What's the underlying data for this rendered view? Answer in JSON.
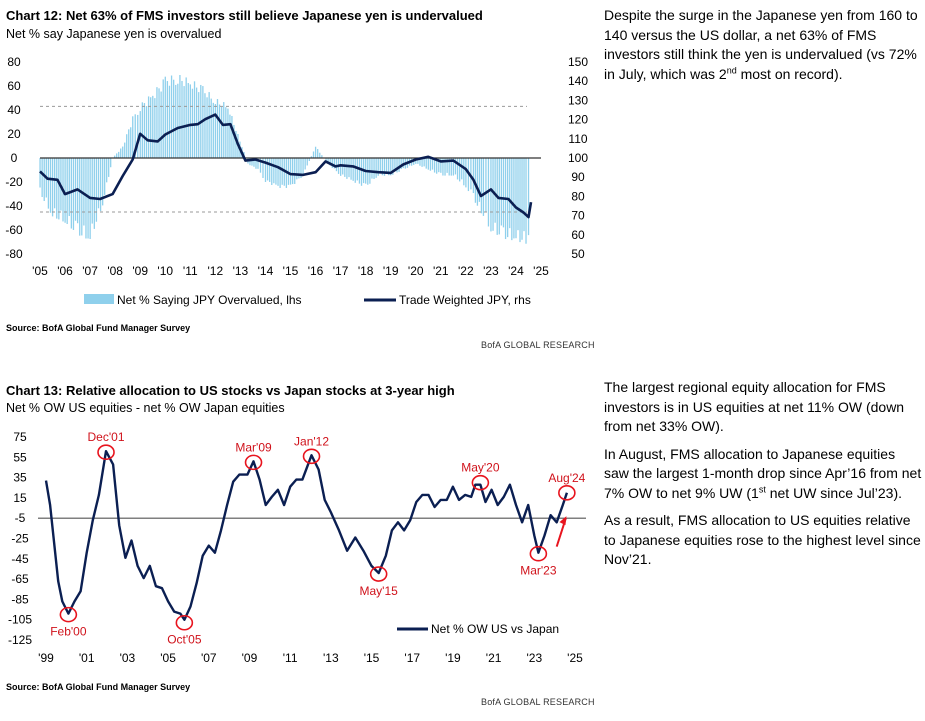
{
  "chart12": {
    "title": "Chart 12: Net 63% of FMS investors still believe Japanese yen is undervalued",
    "subtitle": "Net % say Japanese yen is overvalued",
    "source": "Source: BofA Global Fund Manager Survey",
    "brand": "BofA GLOBAL RESEARCH"
  },
  "chart13": {
    "title": "Chart 13: Relative allocation to US stocks vs Japan stocks at 3-year high",
    "subtitle": "Net % OW US equities - net % OW Japan equities",
    "source": "Source: BofA Global Fund Manager Survey",
    "brand": "BofA GLOBAL RESEARCH"
  },
  "commentary": {
    "p1": {
      "a": "Despite the surge in the Japanese yen from 160 to 140 versus the US dollar, a net 63% of FMS investors still think the yen is undervalued (vs 72% in July, which was 2",
      "sup": "nd",
      "b": " most on record)."
    },
    "p2": "The largest regional equity allocation for FMS investors is in US equities at net 11% OW (down from net 33% OW).",
    "p3": {
      "a": "In August, FMS allocation to Japanese equities saw the largest 1-month drop since Apr’16 from net 7% OW to net 9% UW (1",
      "sup": "st",
      "b": " net UW since Jul’23)."
    },
    "p4": "As a result, FMS allocation to US equities relative to Japanese equities rose to the highest level since Nov’21."
  },
  "chart_data": [
    {
      "type": "bar",
      "title": "Chart 12: Net 63% of FMS investors still believe Japanese yen is undervalued",
      "subtitle": "Net % say Japanese yen is overvalued",
      "x_ticks": [
        "'05",
        "'06",
        "'07",
        "'08",
        "'09",
        "'10",
        "'11",
        "'12",
        "'13",
        "'14",
        "'15",
        "'16",
        "'17",
        "'18",
        "'19",
        "'20",
        "'21",
        "'22",
        "'23",
        "'24",
        "'25"
      ],
      "y_left_ticks": [
        80,
        60,
        40,
        20,
        0,
        -20,
        -40,
        -60,
        -80
      ],
      "y_right_ticks": [
        150,
        140,
        130,
        120,
        110,
        100,
        90,
        80,
        70,
        60,
        50
      ],
      "ylim_left": [
        -80,
        80
      ],
      "ylim_right": [
        50,
        150
      ],
      "reference_lines_lhs": [
        43,
        -45
      ],
      "legend_position": "bottom",
      "series": [
        {
          "name": "Net % Saying JPY Overvalued, lhs",
          "kind": "bar",
          "axis": "left",
          "color": "#8fd0ec",
          "x": [
            2005.0,
            2005.5,
            2006.0,
            2006.5,
            2007.0,
            2007.5,
            2007.9,
            2008.3,
            2008.7,
            2009.0,
            2009.5,
            2010.0,
            2010.5,
            2011.0,
            2011.5,
            2012.0,
            2012.5,
            2012.9,
            2013.3,
            2013.7,
            2014.0,
            2014.5,
            2015.0,
            2015.5,
            2016.0,
            2016.5,
            2017.0,
            2017.5,
            2018.0,
            2018.5,
            2019.0,
            2019.5,
            2020.0,
            2020.5,
            2021.0,
            2021.5,
            2022.0,
            2022.3,
            2022.7,
            2023.0,
            2023.5,
            2024.0,
            2024.4,
            2024.6
          ],
          "values": [
            -30,
            -50,
            -55,
            -65,
            -70,
            -40,
            0,
            10,
            35,
            45,
            55,
            68,
            70,
            66,
            60,
            50,
            45,
            20,
            -5,
            -10,
            -20,
            -25,
            -25,
            -15,
            10,
            -5,
            -15,
            -20,
            -25,
            -15,
            -15,
            -10,
            -5,
            -10,
            -15,
            -15,
            -25,
            -35,
            -50,
            -62,
            -68,
            -70,
            -72,
            -63
          ]
        },
        {
          "name": "Trade Weighted JPY, rhs",
          "kind": "line",
          "axis": "right",
          "color": "#0b1f52",
          "x": [
            2005.0,
            2005.3,
            2005.7,
            2006.0,
            2006.5,
            2007.0,
            2007.4,
            2007.9,
            2008.3,
            2008.7,
            2009.0,
            2009.3,
            2009.7,
            2010.0,
            2010.5,
            2011.0,
            2011.3,
            2011.6,
            2012.0,
            2012.3,
            2012.6,
            2012.9,
            2013.2,
            2013.6,
            2014.0,
            2014.5,
            2015.0,
            2015.5,
            2016.0,
            2016.4,
            2016.8,
            2017.0,
            2017.5,
            2018.0,
            2018.5,
            2019.0,
            2019.5,
            2020.0,
            2020.5,
            2021.0,
            2021.5,
            2022.0,
            2022.3,
            2022.6,
            2023.0,
            2023.3,
            2023.7,
            2024.0,
            2024.3,
            2024.5,
            2024.6
          ],
          "values": [
            93,
            90,
            88,
            82,
            83,
            80,
            78,
            82,
            90,
            100,
            112,
            110,
            108,
            113,
            115,
            118,
            117,
            121,
            122,
            118,
            117,
            108,
            98,
            100,
            97,
            96,
            91,
            92,
            92,
            99,
            95,
            97,
            95,
            94,
            92,
            93,
            96,
            100,
            100,
            99,
            98,
            95,
            88,
            81,
            83,
            80,
            78,
            75,
            71,
            70,
            77
          ]
        }
      ]
    },
    {
      "type": "line",
      "title": "Chart 13: Relative allocation to US stocks vs Japan stocks at 3-year high",
      "subtitle": "Net % OW US equities - net % OW Japan equities",
      "x_ticks": [
        "'99",
        "'01",
        "'03",
        "'05",
        "'07",
        "'09",
        "'11",
        "'13",
        "'15",
        "'17",
        "'19",
        "'21",
        "'23",
        "'25"
      ],
      "y_ticks": [
        75,
        55,
        35,
        15,
        -5,
        -25,
        -45,
        -65,
        -85,
        -105,
        -125
      ],
      "ylim": [
        -125,
        75
      ],
      "reference_lines": [
        -5
      ],
      "legend_position": "bottom-right",
      "annotations": [
        {
          "label": "Feb'00",
          "x": 2000.1,
          "y": -100
        },
        {
          "label": "Dec'01",
          "x": 2001.95,
          "y": 60
        },
        {
          "label": "Oct'05",
          "x": 2005.8,
          "y": -108
        },
        {
          "label": "Mar'09",
          "x": 2009.2,
          "y": 50
        },
        {
          "label": "Jan'12",
          "x": 2012.05,
          "y": 56
        },
        {
          "label": "May'15",
          "x": 2015.35,
          "y": -60
        },
        {
          "label": "May'20",
          "x": 2020.35,
          "y": 30
        },
        {
          "label": "Mar'23",
          "x": 2023.2,
          "y": -40
        },
        {
          "label": "Aug'24",
          "x": 2024.6,
          "y": 20
        }
      ],
      "series": [
        {
          "name": "Net % OW US vs Japan",
          "color": "#0b1f52",
          "x": [
            1999.0,
            1999.2,
            1999.4,
            1999.6,
            1999.8,
            2000.1,
            2000.4,
            2000.7,
            2001.0,
            2001.3,
            2001.6,
            2001.95,
            2002.3,
            2002.6,
            2002.9,
            2003.2,
            2003.5,
            2003.8,
            2004.1,
            2004.4,
            2004.7,
            2005.0,
            2005.3,
            2005.6,
            2005.8,
            2006.1,
            2006.4,
            2006.7,
            2007.0,
            2007.3,
            2007.6,
            2007.9,
            2008.2,
            2008.5,
            2008.9,
            2009.2,
            2009.5,
            2009.8,
            2010.1,
            2010.4,
            2010.7,
            2011.0,
            2011.3,
            2011.6,
            2012.05,
            2012.4,
            2012.7,
            2013.0,
            2013.4,
            2013.8,
            2014.2,
            2014.6,
            2015.0,
            2015.35,
            2015.7,
            2016.0,
            2016.3,
            2016.6,
            2016.9,
            2017.2,
            2017.5,
            2017.8,
            2018.1,
            2018.4,
            2018.7,
            2019.0,
            2019.3,
            2019.6,
            2019.9,
            2020.1,
            2020.35,
            2020.6,
            2020.9,
            2021.2,
            2021.5,
            2021.8,
            2022.1,
            2022.4,
            2022.7,
            2023.0,
            2023.2,
            2023.5,
            2023.8,
            2024.1,
            2024.4,
            2024.6
          ],
          "values": [
            32,
            10,
            -30,
            -70,
            -85,
            -100,
            -90,
            -75,
            -40,
            -10,
            20,
            60,
            45,
            -10,
            -45,
            -30,
            -50,
            -65,
            -55,
            -70,
            -75,
            -90,
            -95,
            -100,
            -108,
            -90,
            -70,
            -45,
            -30,
            -40,
            -20,
            10,
            30,
            35,
            40,
            50,
            30,
            10,
            15,
            20,
            10,
            25,
            30,
            35,
            56,
            40,
            15,
            0,
            -20,
            -35,
            -25,
            -40,
            -50,
            -60,
            -45,
            -15,
            -10,
            -20,
            -5,
            10,
            15,
            20,
            5,
            10,
            15,
            25,
            10,
            20,
            15,
            25,
            30,
            10,
            20,
            10,
            15,
            25,
            10,
            -10,
            5,
            -20,
            -40,
            -25,
            0,
            -10,
            5,
            20
          ]
        }
      ]
    }
  ]
}
